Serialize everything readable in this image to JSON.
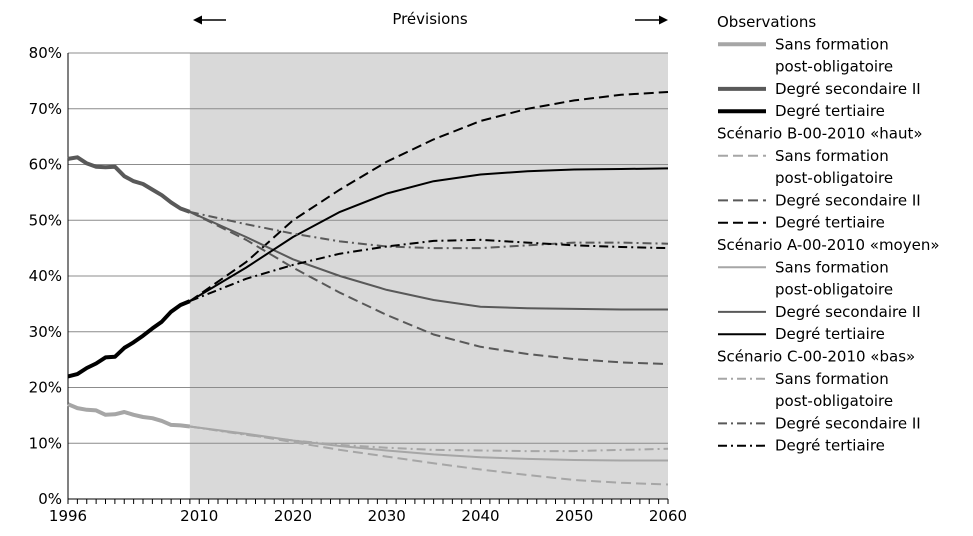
{
  "chart_data": {
    "type": "line",
    "forecast_label": "Prévisions",
    "forecast_start": 2009,
    "xlim": [
      1996,
      2060
    ],
    "ylim": [
      0,
      80
    ],
    "x_ticks": [
      "1996",
      "2010",
      "2020",
      "2030",
      "2040",
      "2050",
      "2060"
    ],
    "y_ticks": [
      "0%",
      "10%",
      "20%",
      "30%",
      "40%",
      "50%",
      "60%",
      "70%",
      "80%"
    ],
    "grid": true,
    "legend_position": "right",
    "legend_groups": [
      {
        "title": "Observations",
        "items": [
          {
            "label": "Sans formation",
            "label2": "post-obligatoire",
            "color": "#a6a6a6",
            "dash": "solid",
            "width": "thick"
          },
          {
            "label": "Degré secondaire II",
            "color": "#595959",
            "dash": "solid",
            "width": "thick"
          },
          {
            "label": "Degré tertiaire",
            "color": "#000000",
            "dash": "solid",
            "width": "thick"
          }
        ]
      },
      {
        "title": "Scénario B-00-2010 «haut»",
        "items": [
          {
            "label": "Sans formation",
            "label2": "post-obligatoire",
            "color": "#a6a6a6",
            "dash": "dash",
            "width": "thin"
          },
          {
            "label": "Degré secondaire II",
            "color": "#595959",
            "dash": "dash",
            "width": "thin"
          },
          {
            "label": "Degré tertiaire",
            "color": "#000000",
            "dash": "dash",
            "width": "thin"
          }
        ]
      },
      {
        "title": "Scénario A-00-2010 «moyen»",
        "items": [
          {
            "label": "Sans formation",
            "label2": "post-obligatoire",
            "color": "#a6a6a6",
            "dash": "solid",
            "width": "thin"
          },
          {
            "label": "Degré secondaire II",
            "color": "#595959",
            "dash": "solid",
            "width": "thin"
          },
          {
            "label": "Degré tertiaire",
            "color": "#000000",
            "dash": "solid",
            "width": "thin"
          }
        ]
      },
      {
        "title": "Scénario C-00-2010 «bas»",
        "items": [
          {
            "label": "Sans formation",
            "label2": "post-obligatoire",
            "color": "#a6a6a6",
            "dash": "dashdot",
            "width": "thin"
          },
          {
            "label": "Degré secondaire II",
            "color": "#595959",
            "dash": "dashdot",
            "width": "thin"
          },
          {
            "label": "Degré tertiaire",
            "color": "#000000",
            "dash": "dashdot",
            "width": "thin"
          }
        ]
      }
    ],
    "series": [
      {
        "group": "Observations",
        "label": "Sans formation post-obligatoire",
        "color": "#a6a6a6",
        "dash": "solid",
        "width": "thick",
        "x": [
          1996,
          1997,
          1998,
          1999,
          2000,
          2001,
          2002,
          2003,
          2004,
          2005,
          2006,
          2007,
          2008,
          2009
        ],
        "y": [
          17,
          16.3,
          16,
          15.9,
          15.1,
          15.2,
          15.6,
          15.1,
          14.7,
          14.5,
          14.0,
          13.3,
          13.2,
          13.0
        ]
      },
      {
        "group": "Observations",
        "label": "Degré secondaire II",
        "color": "#595959",
        "dash": "solid",
        "width": "thick",
        "x": [
          1996,
          1997,
          1998,
          1999,
          2000,
          2001,
          2002,
          2003,
          2004,
          2005,
          2006,
          2007,
          2008,
          2009
        ],
        "y": [
          61,
          61.3,
          60.2,
          59.6,
          59.5,
          59.6,
          57.9,
          57.0,
          56.5,
          55.5,
          54.5,
          53.2,
          52.1,
          51.5
        ]
      },
      {
        "group": "Observations",
        "label": "Degré tertiaire",
        "color": "#000000",
        "dash": "solid",
        "width": "thick",
        "x": [
          1996,
          1997,
          1998,
          1999,
          2000,
          2001,
          2002,
          2003,
          2004,
          2005,
          2006,
          2007,
          2008,
          2009
        ],
        "y": [
          22,
          22.4,
          23.5,
          24.3,
          25.4,
          25.5,
          27.1,
          28.1,
          29.3,
          30.6,
          31.8,
          33.6,
          34.8,
          35.5
        ]
      },
      {
        "group": "Scénario B-00-2010 «haut»",
        "label": "Sans formation post-obligatoire",
        "color": "#a6a6a6",
        "dash": "dash",
        "width": "thin",
        "x": [
          2009,
          2015,
          2020,
          2025,
          2030,
          2035,
          2040,
          2045,
          2050,
          2055,
          2060
        ],
        "y": [
          13.0,
          11.6,
          10.2,
          8.8,
          7.6,
          6.4,
          5.3,
          4.3,
          3.4,
          2.9,
          2.6
        ]
      },
      {
        "group": "Scénario B-00-2010 «haut»",
        "label": "Degré secondaire II",
        "color": "#595959",
        "dash": "dash",
        "width": "thin",
        "x": [
          2009,
          2015,
          2020,
          2025,
          2030,
          2035,
          2040,
          2045,
          2050,
          2055,
          2060
        ],
        "y": [
          51.5,
          46.5,
          41.5,
          37.0,
          33.0,
          29.5,
          27.3,
          26.0,
          25.1,
          24.5,
          24.2
        ]
      },
      {
        "group": "Scénario B-00-2010 «haut»",
        "label": "Degré tertiaire",
        "color": "#000000",
        "dash": "dash",
        "width": "thin",
        "x": [
          2009,
          2015,
          2020,
          2025,
          2030,
          2035,
          2040,
          2045,
          2050,
          2055,
          2060
        ],
        "y": [
          35.5,
          42.5,
          50.0,
          55.5,
          60.5,
          64.5,
          67.8,
          70.0,
          71.5,
          72.5,
          73.0
        ]
      },
      {
        "group": "Scénario A-00-2010 «moyen»",
        "label": "Sans formation post-obligatoire",
        "color": "#a6a6a6",
        "dash": "solid",
        "width": "thin",
        "x": [
          2009,
          2015,
          2020,
          2025,
          2030,
          2035,
          2040,
          2045,
          2050,
          2055,
          2060
        ],
        "y": [
          13.0,
          11.7,
          10.5,
          9.5,
          8.7,
          8.0,
          7.5,
          7.2,
          7.0,
          6.9,
          6.9
        ]
      },
      {
        "group": "Scénario A-00-2010 «moyen»",
        "label": "Degré secondaire II",
        "color": "#595959",
        "dash": "solid",
        "width": "thin",
        "x": [
          2009,
          2015,
          2020,
          2025,
          2030,
          2035,
          2040,
          2045,
          2050,
          2055,
          2060
        ],
        "y": [
          51.5,
          47.0,
          43.0,
          40.0,
          37.5,
          35.7,
          34.5,
          34.2,
          34.1,
          34.0,
          34.0
        ]
      },
      {
        "group": "Scénario A-00-2010 «moyen»",
        "label": "Degré tertiaire",
        "color": "#000000",
        "dash": "solid",
        "width": "thin",
        "x": [
          2009,
          2015,
          2020,
          2025,
          2030,
          2035,
          2040,
          2045,
          2050,
          2055,
          2060
        ],
        "y": [
          35.5,
          41.5,
          47.0,
          51.5,
          54.8,
          57.0,
          58.2,
          58.8,
          59.1,
          59.2,
          59.3
        ]
      },
      {
        "group": "Scénario C-00-2010 «bas»",
        "label": "Sans formation post-obligatoire",
        "color": "#a6a6a6",
        "dash": "dashdot",
        "width": "thin",
        "x": [
          2009,
          2015,
          2020,
          2025,
          2030,
          2035,
          2040,
          2045,
          2050,
          2055,
          2060
        ],
        "y": [
          13.0,
          11.5,
          10.5,
          9.7,
          9.2,
          8.8,
          8.7,
          8.6,
          8.6,
          8.8,
          9.0
        ]
      },
      {
        "group": "Scénario C-00-2010 «bas»",
        "label": "Degré secondaire II",
        "color": "#595959",
        "dash": "dashdot",
        "width": "thin",
        "x": [
          2009,
          2015,
          2020,
          2025,
          2030,
          2035,
          2040,
          2045,
          2050,
          2055,
          2060
        ],
        "y": [
          51.5,
          49.3,
          47.6,
          46.2,
          45.3,
          45.0,
          45.0,
          45.5,
          46.0,
          46.0,
          45.8
        ]
      },
      {
        "group": "Scénario C-00-2010 «bas»",
        "label": "Degré tertiaire",
        "color": "#000000",
        "dash": "dashdot",
        "width": "thin",
        "x": [
          2009,
          2015,
          2020,
          2025,
          2030,
          2035,
          2040,
          2045,
          2050,
          2055,
          2060
        ],
        "y": [
          35.5,
          39.5,
          42.0,
          44.0,
          45.3,
          46.3,
          46.5,
          46.0,
          45.5,
          45.2,
          45.0
        ]
      }
    ]
  }
}
